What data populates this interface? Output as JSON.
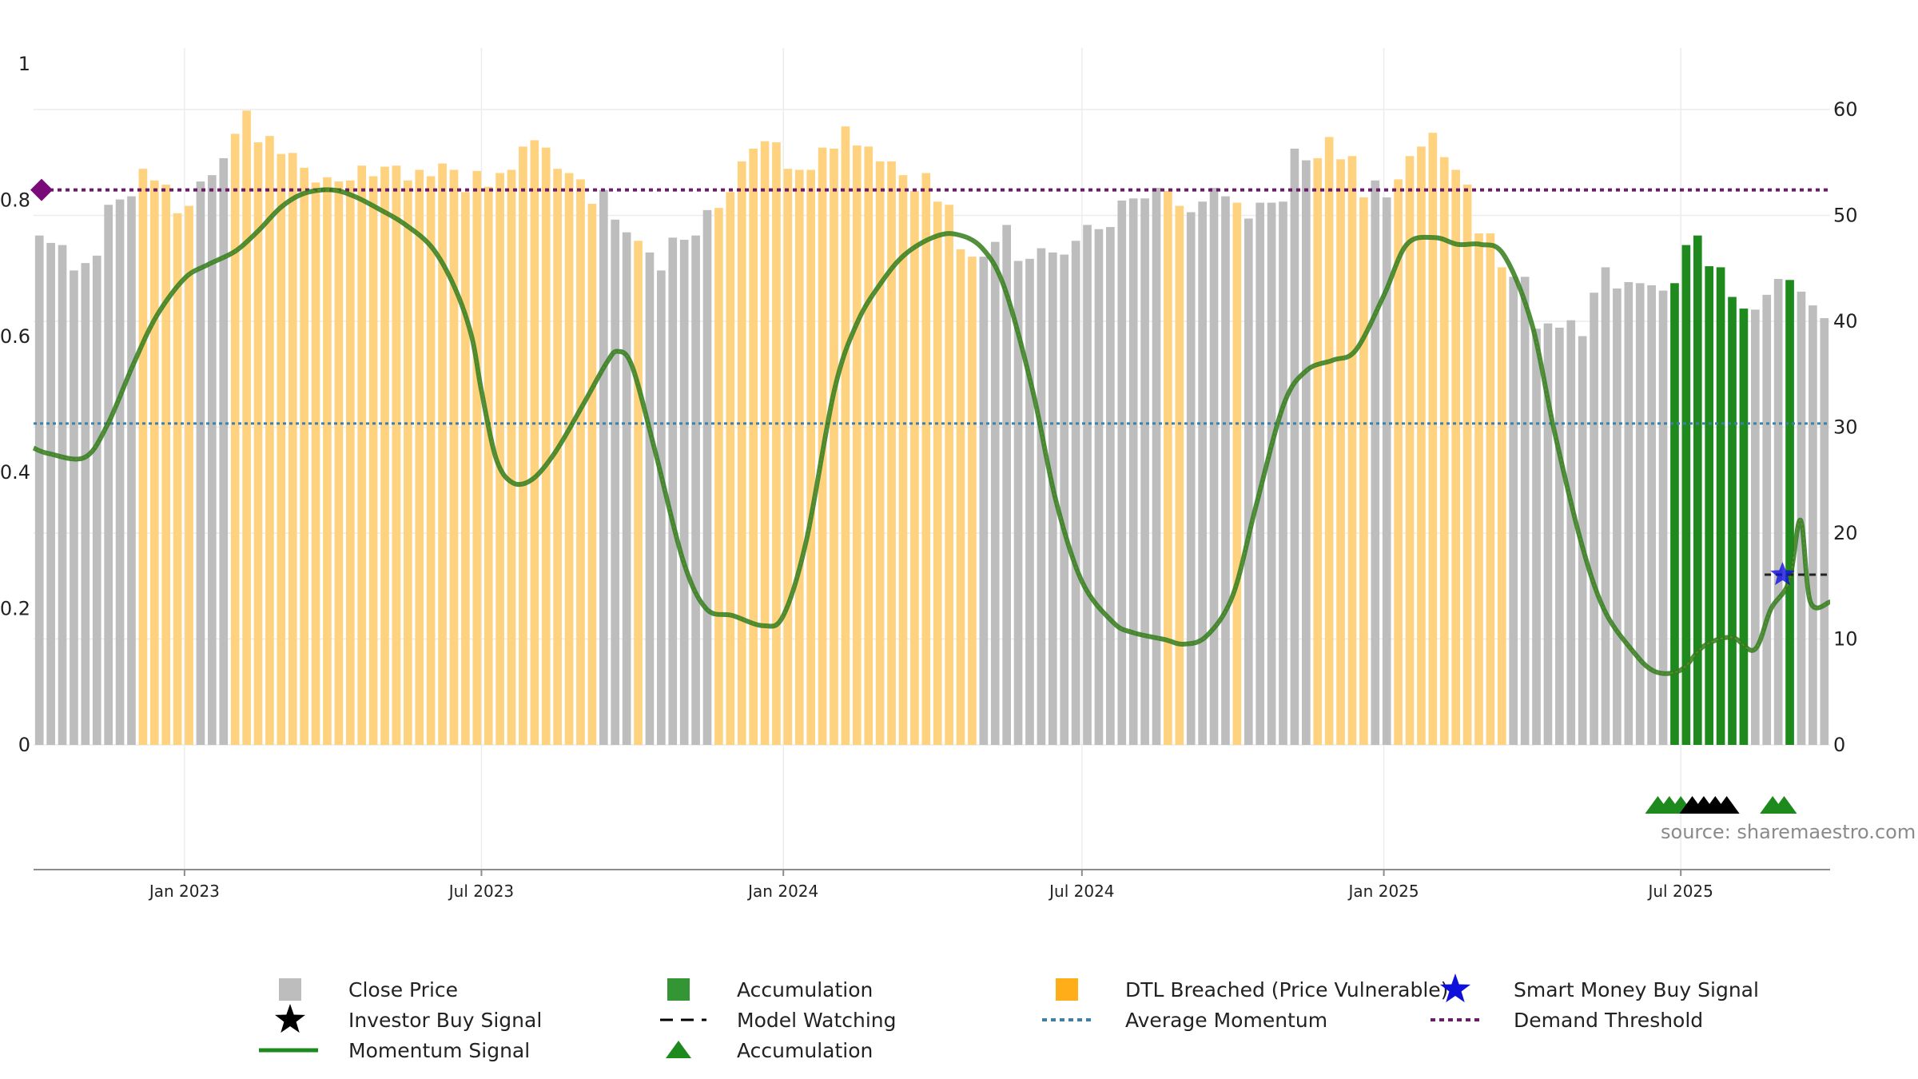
{
  "chart_data": {
    "type": "bar",
    "title": "",
    "xlabel": "",
    "ylabel": "",
    "source_text": "source: sharemaestro.com",
    "x_ticks": [
      "Jan 2023",
      "Jul 2023",
      "Jan 2024",
      "Jul 2024",
      "Jan 2025",
      "Jul 2025"
    ],
    "x_range": [
      "2022-10-01",
      "2025-09-30"
    ],
    "left_axis": {
      "range": [
        0,
        1
      ],
      "ticks": [
        "0",
        "0.2",
        "0.4",
        "0.6",
        "0.8",
        "1"
      ]
    },
    "right_axis": {
      "range": [
        0,
        64.3
      ],
      "ticks": [
        "0",
        "10",
        "20",
        "30",
        "40",
        "50",
        "60"
      ]
    },
    "grid": true,
    "legend_position": "bottom",
    "colors": {
      "close": "#bdbdbd",
      "dtl": "#ffd27f",
      "accumulation": "#1e8a1e",
      "momentum": "#2e7d1e",
      "average_momentum": "#3f7fa8",
      "demand_threshold": "#6a1b6a",
      "smart_money": "#1010dd",
      "investor_buy": "#000000"
    },
    "close_price": {
      "start_date": "2022-10-01",
      "period": "weekly",
      "values": [
        48.1,
        47.4,
        47.2,
        44.8,
        45.5,
        46.2,
        51,
        51.5,
        51.8,
        54.4,
        53.3,
        52.9,
        50.2,
        50.9,
        53.2,
        53.8,
        55.4,
        57.7,
        59.9,
        56.9,
        57.5,
        55.8,
        55.9,
        54.5,
        53.1,
        53.6,
        53.2,
        53.3,
        54.7,
        53.7,
        54.6,
        54.7,
        53.3,
        54.3,
        53.7,
        54.9,
        54.3,
        52.2,
        54.2,
        52.7,
        54,
        54.3,
        56.5,
        57.1,
        56.4,
        54.4,
        54,
        53.4,
        51.1,
        52.4,
        49.6,
        48.4,
        47.6,
        46.5,
        44.8,
        47.9,
        47.7,
        48.1,
        50.5,
        50.7,
        52.2,
        55.1,
        56.3,
        57,
        56.9,
        54.4,
        54.3,
        54.3,
        56.4,
        56.3,
        58.4,
        56.6,
        56.5,
        55.1,
        55.1,
        53.8,
        52.3,
        54,
        51.3,
        51,
        46.8,
        46.1,
        46.1,
        47.5,
        49.1,
        45.7,
        45.9,
        46.9,
        46.5,
        46.3,
        47.6,
        49.1,
        48.7,
        48.9,
        51.4,
        51.6,
        51.6,
        52.6,
        52.3,
        50.9,
        50.3,
        51.3,
        52.6,
        51.8,
        51.2,
        49.7,
        51.2,
        51.2,
        51.3,
        56.3,
        55.2,
        55.4,
        57.4,
        55.3,
        55.6,
        51.7,
        53.3,
        51.7,
        53.4,
        55.6,
        56.5,
        57.8,
        55.5,
        54.3,
        52.9,
        48.3,
        48.3,
        45.1,
        44.2,
        44.2,
        39.3,
        39.8,
        39.4,
        40.1,
        38.6,
        42.7,
        45.1,
        43.1,
        43.7,
        43.6,
        43.4,
        42.9,
        43.6,
        47.2,
        48.1,
        45.2,
        45.1,
        42.3,
        41.2,
        41.1,
        42.5,
        44,
        43.9,
        42.8,
        41.5,
        40.3
      ]
    },
    "dtl_breached_ranges": [
      [
        "2022-11-29",
        "2023-01-03"
      ],
      [
        "2023-01-24",
        "2023-09-05"
      ],
      [
        "2023-09-26",
        "2023-10-03"
      ],
      [
        "2023-11-14",
        "2024-04-23"
      ],
      [
        "2024-08-13",
        "2024-08-27"
      ],
      [
        "2024-09-24",
        "2024-10-01"
      ],
      [
        "2024-11-12",
        "2024-12-17"
      ],
      [
        "2024-12-31",
        "2025-03-11"
      ]
    ],
    "accumulation_ranges": [
      [
        "2025-06-17",
        "2025-08-05"
      ],
      [
        "2025-08-26",
        "2025-09-02"
      ]
    ],
    "momentum_signal": {
      "points": [
        [
          "2022-10-01",
          0.436
        ],
        [
          "2022-10-10",
          0.428
        ],
        [
          "2022-11-01",
          0.422
        ],
        [
          "2022-11-15",
          0.47
        ],
        [
          "2022-12-01",
          0.56
        ],
        [
          "2022-12-15",
          0.63
        ],
        [
          "2023-01-01",
          0.685
        ],
        [
          "2023-01-15",
          0.705
        ],
        [
          "2023-02-01",
          0.725
        ],
        [
          "2023-02-15",
          0.755
        ],
        [
          "2023-03-01",
          0.79
        ],
        [
          "2023-03-15",
          0.81
        ],
        [
          "2023-04-01",
          0.815
        ],
        [
          "2023-04-15",
          0.805
        ],
        [
          "2023-05-01",
          0.785
        ],
        [
          "2023-05-15",
          0.765
        ],
        [
          "2023-06-01",
          0.73
        ],
        [
          "2023-06-15",
          0.67
        ],
        [
          "2023-06-25",
          0.6
        ],
        [
          "2023-07-01",
          0.52
        ],
        [
          "2023-07-10",
          0.42
        ],
        [
          "2023-07-20",
          0.385
        ],
        [
          "2023-08-01",
          0.39
        ],
        [
          "2023-08-15",
          0.43
        ],
        [
          "2023-09-01",
          0.5
        ],
        [
          "2023-09-15",
          0.56
        ],
        [
          "2023-09-22",
          0.578
        ],
        [
          "2023-10-01",
          0.555
        ],
        [
          "2023-10-15",
          0.43
        ],
        [
          "2023-11-01",
          0.27
        ],
        [
          "2023-11-15",
          0.2
        ],
        [
          "2023-12-01",
          0.19
        ],
        [
          "2023-12-20",
          0.175
        ],
        [
          "2024-01-01",
          0.19
        ],
        [
          "2024-01-15",
          0.3
        ],
        [
          "2024-02-01",
          0.52
        ],
        [
          "2024-02-15",
          0.62
        ],
        [
          "2024-03-01",
          0.68
        ],
        [
          "2024-03-15",
          0.72
        ],
        [
          "2024-04-01",
          0.745
        ],
        [
          "2024-04-15",
          0.75
        ],
        [
          "2024-05-01",
          0.73
        ],
        [
          "2024-05-15",
          0.67
        ],
        [
          "2024-06-01",
          0.52
        ],
        [
          "2024-06-15",
          0.36
        ],
        [
          "2024-07-01",
          0.24
        ],
        [
          "2024-07-20",
          0.18
        ],
        [
          "2024-08-01",
          0.165
        ],
        [
          "2024-08-20",
          0.155
        ],
        [
          "2024-09-01",
          0.148
        ],
        [
          "2024-09-15",
          0.16
        ],
        [
          "2024-10-01",
          0.22
        ],
        [
          "2024-10-15",
          0.35
        ],
        [
          "2024-11-01",
          0.5
        ],
        [
          "2024-11-15",
          0.55
        ],
        [
          "2024-12-01",
          0.565
        ],
        [
          "2024-12-15",
          0.58
        ],
        [
          "2025-01-01",
          0.66
        ],
        [
          "2025-01-15",
          0.735
        ],
        [
          "2025-02-01",
          0.745
        ],
        [
          "2025-02-15",
          0.735
        ],
        [
          "2025-03-01",
          0.735
        ],
        [
          "2025-03-15",
          0.72
        ],
        [
          "2025-04-01",
          0.62
        ],
        [
          "2025-04-15",
          0.46
        ],
        [
          "2025-05-01",
          0.3
        ],
        [
          "2025-05-15",
          0.2
        ],
        [
          "2025-06-01",
          0.14
        ],
        [
          "2025-06-15",
          0.108
        ],
        [
          "2025-07-01",
          0.11
        ],
        [
          "2025-07-15",
          0.145
        ],
        [
          "2025-08-01",
          0.158
        ],
        [
          "2025-08-15",
          0.14
        ],
        [
          "2025-08-25",
          0.2
        ],
        [
          "2025-09-05",
          0.24
        ],
        [
          "2025-09-12",
          0.33
        ],
        [
          "2025-09-18",
          0.21
        ],
        [
          "2025-09-30",
          0.21
        ]
      ]
    },
    "average_momentum": 0.472,
    "demand_threshold": 0.815,
    "model_watching": {
      "date": "2025-09-12",
      "value": 0.25
    },
    "smart_money_buy_signals": [
      [
        "2025-09-01",
        0.25
      ]
    ],
    "accumulation_markers": [
      "2025-06-17",
      "2025-06-24",
      "2025-07-01",
      "2025-08-26",
      "2025-09-02"
    ],
    "investor_buy_markers": [
      "2025-07-08",
      "2025-07-15",
      "2025-07-22",
      "2025-07-29"
    ],
    "legend": [
      {
        "label": "Close Price",
        "symbol": "square",
        "color": "#bdbdbd"
      },
      {
        "label": "Accumulation",
        "symbol": "square",
        "color": "#1e8a1e"
      },
      {
        "label": "DTL Breached (Price Vulnerable)",
        "symbol": "square",
        "color": "#ffa500"
      },
      {
        "label": "Smart Money Buy Signal",
        "symbol": "star",
        "color": "#1010dd"
      },
      {
        "label": "Investor Buy Signal",
        "symbol": "star",
        "color": "#000000"
      },
      {
        "label": "Model Watching",
        "symbol": "dash",
        "color": "#000000"
      },
      {
        "label": "Average Momentum",
        "symbol": "dot",
        "color": "#3f7fa8"
      },
      {
        "label": "Demand Threshold",
        "symbol": "dot",
        "color": "#6a1b6a"
      },
      {
        "label": "Momentum Signal",
        "symbol": "line",
        "color": "#1e8a1e"
      },
      {
        "label": "Accumulation",
        "symbol": "triangle",
        "color": "#1e8a1e"
      }
    ]
  }
}
